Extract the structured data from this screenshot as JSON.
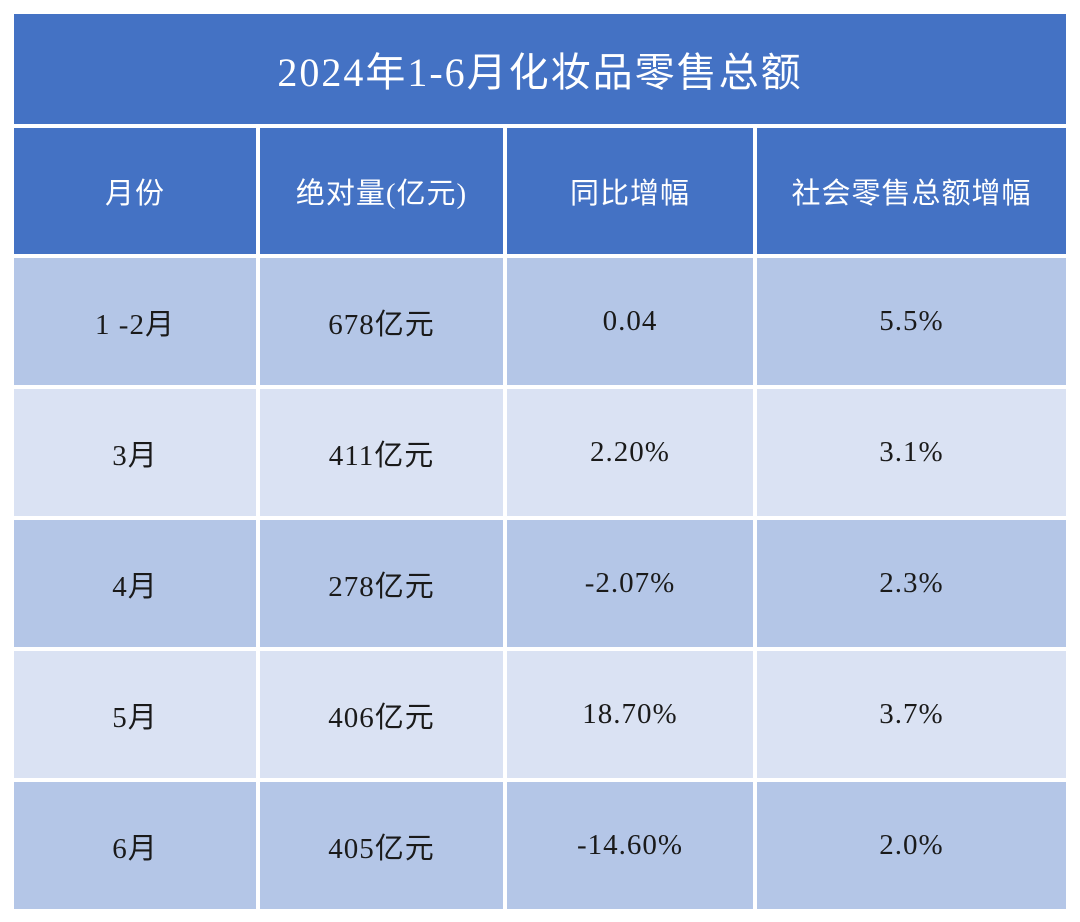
{
  "title": "2024年1-6月化妆品零售总额",
  "colors": {
    "header_bg": "#4472C4",
    "row_dark_bg": "#B4C6E7",
    "row_light_bg": "#DAE2F3",
    "header_text": "#FFFFFF",
    "cell_text": "#1A1A1A"
  },
  "table": {
    "headers": [
      "月份",
      "绝对量(亿元)",
      "同比增幅",
      "社会零售总额增幅"
    ],
    "rows": [
      [
        "1 -2月",
        "678亿元",
        "0.04",
        "5.5%"
      ],
      [
        "3月",
        "411亿元",
        "2.20%",
        "3.1%"
      ],
      [
        "4月",
        "278亿元",
        "-2.07%",
        "2.3%"
      ],
      [
        "5月",
        "406亿元",
        "18.70%",
        "3.7%"
      ],
      [
        "6月",
        "405亿元",
        "-14.60%",
        "2.0%"
      ]
    ]
  },
  "chart_data": {
    "type": "table",
    "title": "2024年1-6月化妆品零售总额",
    "columns": [
      "月份",
      "绝对量(亿元)",
      "同比增幅",
      "社会零售总额增幅"
    ],
    "categories": [
      "1 -2月",
      "3月",
      "4月",
      "5月",
      "6月"
    ],
    "series": [
      {
        "name": "绝对量(亿元)",
        "values": [
          678,
          411,
          278,
          406,
          405
        ]
      },
      {
        "name": "同比增幅",
        "values": [
          "0.04",
          "2.20%",
          "-2.07%",
          "18.70%",
          "-14.60%"
        ]
      },
      {
        "name": "社会零售总额增幅",
        "values": [
          "5.5%",
          "3.1%",
          "2.3%",
          "3.7%",
          "2.0%"
        ]
      }
    ]
  }
}
